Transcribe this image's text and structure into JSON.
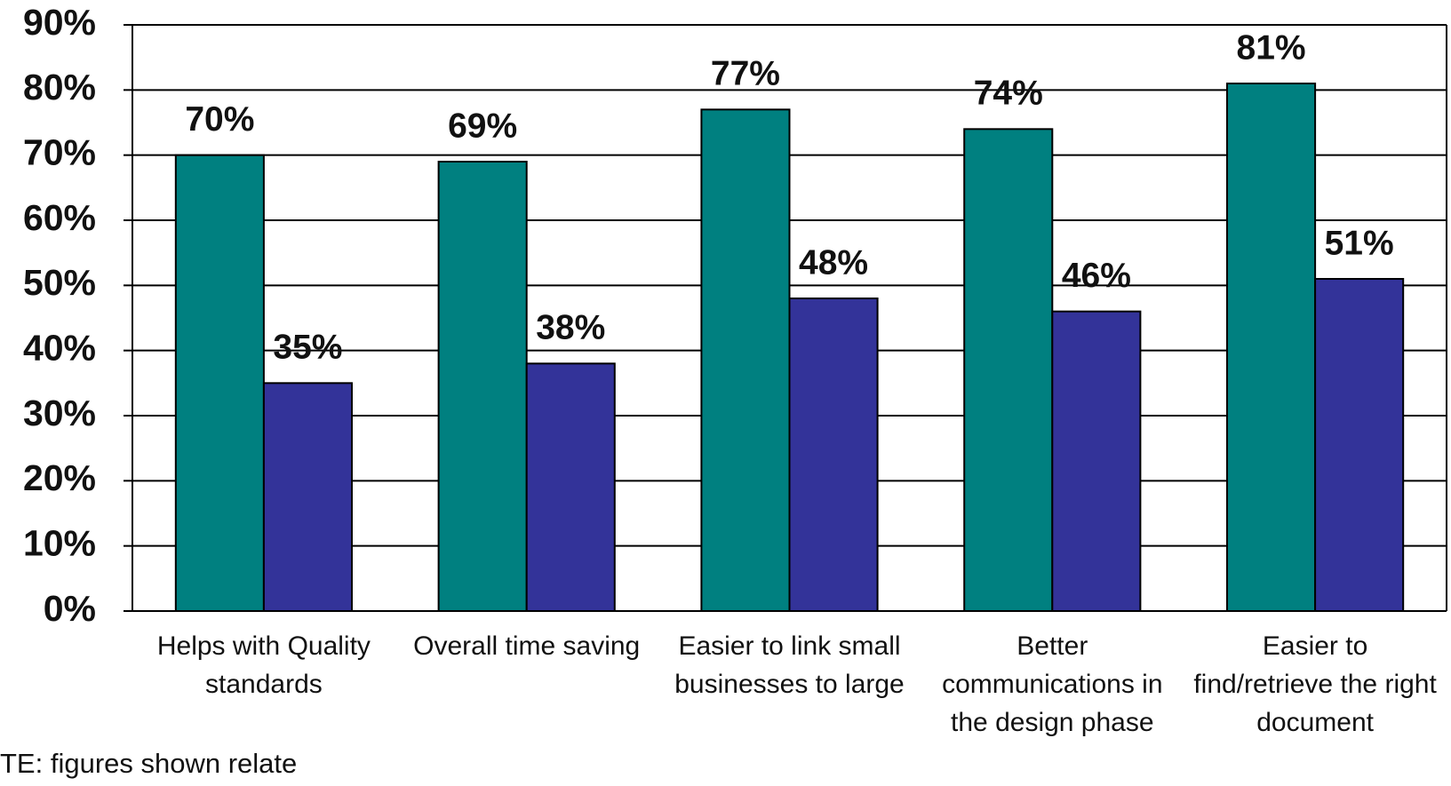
{
  "chart_data": {
    "type": "bar",
    "categories": [
      "Helps with Quality standards",
      "Overall time saving",
      "Easier to link small businesses to large",
      "Better communications in the design phase",
      "Easier to find/retrieve the right document"
    ],
    "series": [
      {
        "color": "#008080",
        "values": [
          70,
          69,
          77,
          74,
          81
        ],
        "value_labels": [
          "70%",
          "69%",
          "77%",
          "74%",
          "81%"
        ]
      },
      {
        "color": "#333399",
        "values": [
          35,
          38,
          48,
          46,
          51
        ],
        "value_labels": [
          "35%",
          "38%",
          "48%",
          "46%",
          "51%"
        ]
      }
    ],
    "ylim": [
      0,
      90
    ],
    "yticks": [
      {
        "value": 0,
        "label": "0%"
      },
      {
        "value": 10,
        "label": "10%"
      },
      {
        "value": 20,
        "label": "20%"
      },
      {
        "value": 30,
        "label": "30%"
      },
      {
        "value": 40,
        "label": "40%"
      },
      {
        "value": 50,
        "label": "50%"
      },
      {
        "value": 60,
        "label": "60%"
      },
      {
        "value": 70,
        "label": "70%"
      },
      {
        "value": 80,
        "label": "80%"
      },
      {
        "value": 90,
        "label": "90%"
      }
    ],
    "grid": true,
    "note": "TE: figures shown relate"
  }
}
